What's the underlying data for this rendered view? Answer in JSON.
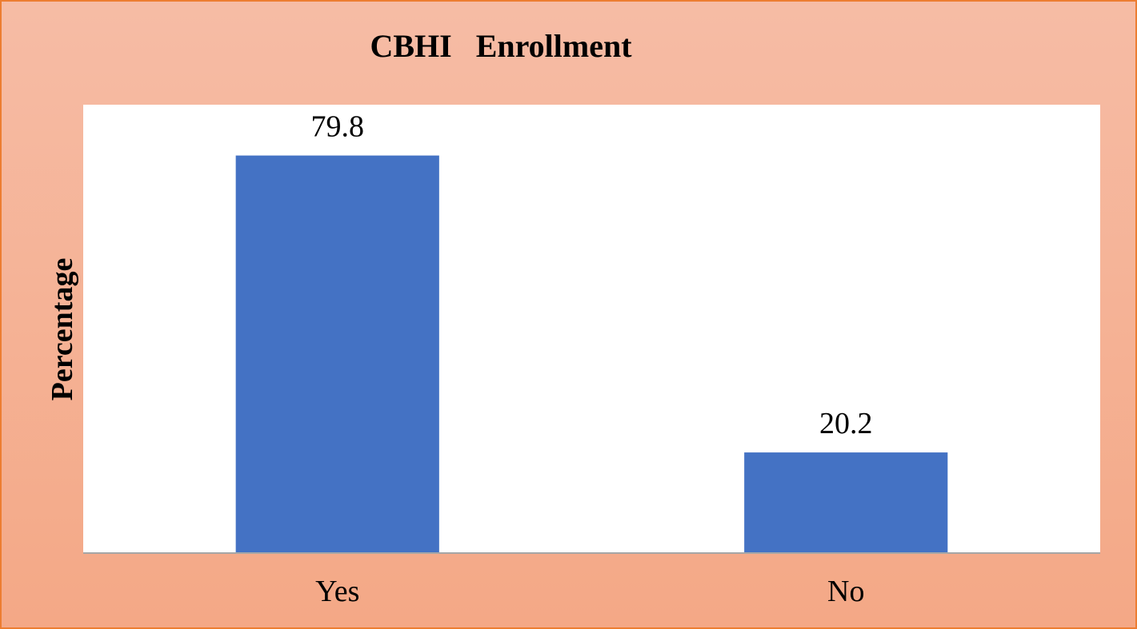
{
  "chart_data": {
    "type": "bar",
    "title": "CBHI   Enrollment",
    "xlabel": "",
    "ylabel": "Percentage",
    "categories": [
      "Yes",
      "No"
    ],
    "values": [
      79.8,
      20.2
    ],
    "data_labels": [
      "79.8",
      "20.2"
    ],
    "ylim": [
      0,
      90
    ],
    "grid": false,
    "legend": "none",
    "colors": {
      "bar": "#4472C4",
      "plot_bg": "#FFFFFF",
      "frame_border": "#ED7D31",
      "axis": "#A6A6A6"
    }
  }
}
